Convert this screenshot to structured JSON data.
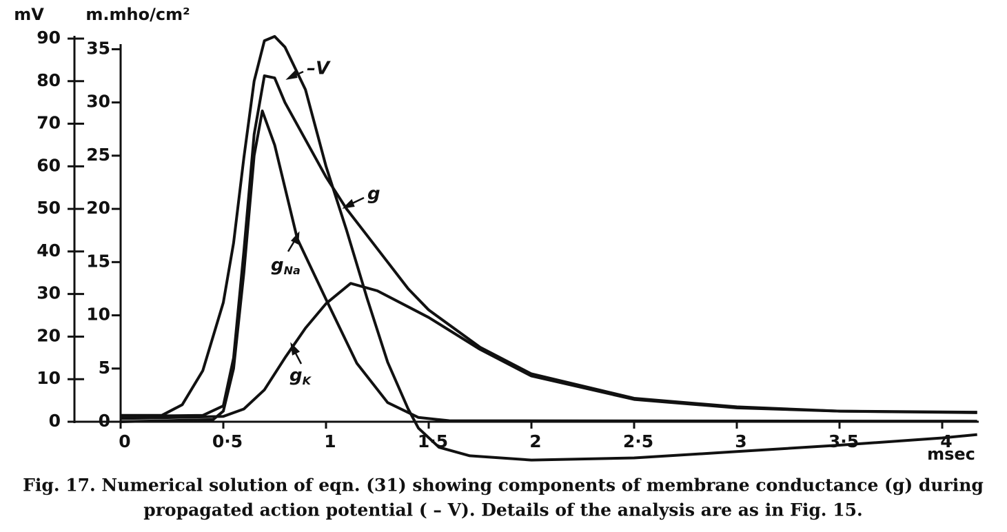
{
  "chart_data": {
    "type": "line",
    "x_label": "msec",
    "y_label": "mV",
    "y2_label": "m.mho/cm²",
    "xlim": [
      0,
      4.2
    ],
    "xticks": [
      0,
      {
        "value": 0.5,
        "label": "0·5"
      },
      1,
      {
        "value": 1.5,
        "label": "1·5"
      },
      2,
      {
        "value": 2.5,
        "label": "2·5"
      },
      3,
      {
        "value": 3.5,
        "label": "3·5"
      },
      4
    ],
    "ylim": [
      -10,
      95
    ],
    "yticks": [
      0,
      10,
      20,
      30,
      40,
      50,
      60,
      70,
      80,
      90
    ],
    "y2lim": [
      -4,
      38
    ],
    "y2ticks": [
      0,
      5,
      10,
      15,
      20,
      25,
      30,
      35
    ],
    "series": [
      {
        "name": "–V",
        "color": "#111111",
        "axis": "y",
        "x": [
          0,
          0.2,
          0.3,
          0.4,
          0.5,
          0.55,
          0.6,
          0.65,
          0.7,
          0.75,
          0.8,
          0.9,
          1.0,
          1.1,
          1.2,
          1.3,
          1.4,
          1.45,
          1.55,
          1.7,
          2.0,
          2.5,
          3.0,
          3.5,
          4.0,
          4.17
        ],
        "values": [
          1.5,
          1.5,
          4,
          12,
          28,
          42,
          62,
          80,
          89.5,
          90.5,
          88,
          78,
          60,
          45,
          29,
          14,
          3,
          -1.5,
          -6,
          -8,
          -9,
          -8.5,
          -7,
          -5.5,
          -3.8,
          -3
        ]
      },
      {
        "name": "g",
        "color": "#111111",
        "axis": "y2",
        "x": [
          0,
          0.4,
          0.5,
          0.55,
          0.6,
          0.65,
          0.7,
          0.75,
          0.8,
          0.9,
          1.0,
          1.1,
          1.2,
          1.3,
          1.4,
          1.5,
          1.75,
          2.0,
          2.5,
          3.0,
          3.5,
          4.17
        ],
        "values": [
          0.5,
          0.6,
          1.5,
          6,
          16,
          27,
          32.5,
          32.3,
          30,
          26.5,
          23,
          20,
          17.5,
          15,
          12.5,
          10.5,
          7,
          4.5,
          2.2,
          1.4,
          1.0,
          0.9
        ]
      },
      {
        "name": "gNa",
        "color": "#111111",
        "axis": "y2",
        "x": [
          0,
          0.45,
          0.5,
          0.55,
          0.6,
          0.65,
          0.69,
          0.75,
          0.86,
          1.0,
          1.15,
          1.3,
          1.45,
          1.6,
          4.17
        ],
        "values": [
          0,
          0.2,
          1,
          5,
          14,
          25,
          29.2,
          26,
          17.2,
          11.5,
          5.5,
          1.8,
          0.4,
          0.1,
          0.05
        ]
      },
      {
        "name": "gK",
        "color": "#111111",
        "axis": "y2",
        "x": [
          0,
          0.5,
          0.6,
          0.7,
          0.8,
          0.9,
          1.0,
          1.12,
          1.25,
          1.4,
          1.5,
          1.75,
          2.0,
          2.5,
          3.0,
          3.5,
          4.17
        ],
        "values": [
          0.3,
          0.5,
          1.2,
          3,
          6,
          8.8,
          11.1,
          13,
          12.3,
          10.8,
          9.8,
          6.8,
          4.3,
          2.1,
          1.3,
          1.0,
          0.85
        ]
      }
    ]
  },
  "caption": [
    "Fig. 17.  Numerical solution of eqn. (31) showing components of membrane conductance (g) during",
    "propagated action potential ( – V).  Details of the analysis are as in Fig. 15."
  ]
}
